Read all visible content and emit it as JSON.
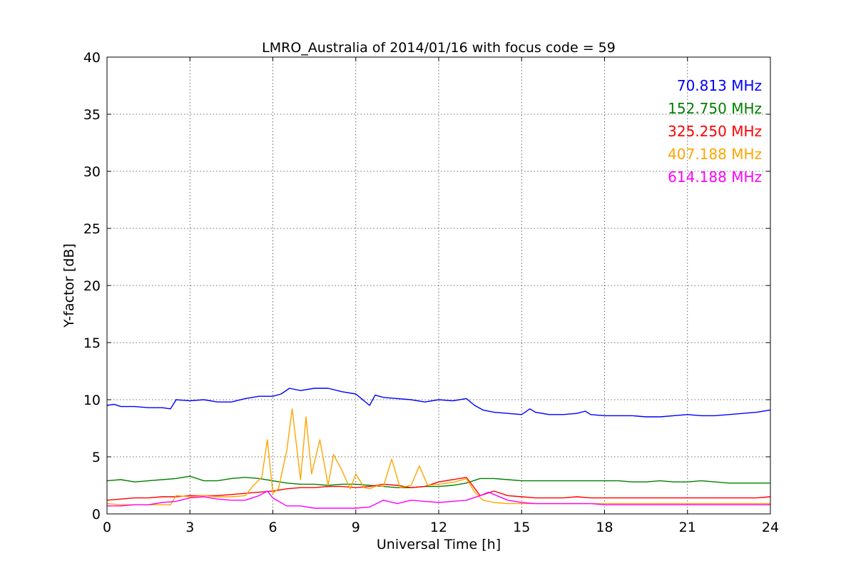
{
  "chart_data": {
    "type": "line",
    "title": "LMRO_Australia of 2014/01/16 with focus code = 59",
    "xlabel": "Universal Time [h]",
    "ylabel": "Y-factor [dB]",
    "xlim": [
      0,
      24
    ],
    "ylim": [
      0,
      40
    ],
    "xticks": [
      0,
      3,
      6,
      9,
      12,
      15,
      18,
      21,
      24
    ],
    "yticks": [
      0,
      5,
      10,
      15,
      20,
      25,
      30,
      35,
      40
    ],
    "xtick_labels": [
      "0",
      "3",
      "6",
      "9",
      "12",
      "15",
      "18",
      "21",
      "24"
    ],
    "ytick_labels": [
      "0",
      "5",
      "10",
      "15",
      "20",
      "25",
      "30",
      "35",
      "40"
    ],
    "grid": true,
    "legend_position": "top-right",
    "series": [
      {
        "name": "70.813 MHz",
        "color": "#0000ff",
        "x": [
          0,
          0.25,
          0.5,
          1,
          1.5,
          2,
          2.3,
          2.5,
          3,
          3.5,
          4,
          4.5,
          5,
          5.5,
          6,
          6.3,
          6.6,
          7,
          7.5,
          8,
          8.5,
          9,
          9.5,
          9.7,
          10,
          10.5,
          11,
          11.5,
          12,
          12.5,
          13,
          13.3,
          13.6,
          14,
          14.5,
          15,
          15.3,
          15.5,
          16,
          16.5,
          17,
          17.3,
          17.5,
          18,
          18.5,
          19,
          19.5,
          20,
          20.5,
          21,
          21.5,
          22,
          22.5,
          23,
          23.5,
          24
        ],
        "y": [
          9.5,
          9.6,
          9.4,
          9.4,
          9.3,
          9.3,
          9.2,
          10,
          9.9,
          10,
          9.8,
          9.8,
          10.1,
          10.3,
          10.3,
          10.5,
          11,
          10.8,
          11,
          11,
          10.7,
          10.5,
          9.5,
          10.4,
          10.2,
          10.1,
          10,
          9.8,
          10,
          9.9,
          10.1,
          9.5,
          9.1,
          8.9,
          8.8,
          8.7,
          9.2,
          8.9,
          8.7,
          8.7,
          8.8,
          9,
          8.7,
          8.6,
          8.6,
          8.6,
          8.5,
          8.5,
          8.6,
          8.7,
          8.6,
          8.6,
          8.7,
          8.8,
          8.9,
          9.1
        ]
      },
      {
        "name": "152.750 MHz",
        "color": "#008000",
        "x": [
          0,
          0.5,
          1,
          1.5,
          2,
          2.5,
          3,
          3.5,
          4,
          4.5,
          5,
          5.5,
          6,
          6.5,
          7,
          7.5,
          8,
          8.5,
          9,
          9.5,
          10,
          10.5,
          11,
          11.5,
          12,
          12.5,
          13,
          13.5,
          14,
          14.5,
          15,
          15.5,
          16,
          16.5,
          17,
          17.5,
          18,
          18.5,
          19,
          19.5,
          20,
          20.5,
          21,
          21.5,
          22,
          22.5,
          23,
          23.5,
          24
        ],
        "y": [
          2.9,
          3,
          2.8,
          2.9,
          3,
          3.1,
          3.3,
          2.9,
          2.9,
          3.1,
          3.2,
          3.1,
          2.9,
          2.7,
          2.6,
          2.6,
          2.5,
          2.6,
          2.6,
          2.5,
          2.4,
          2.3,
          2.3,
          2.4,
          2.4,
          2.5,
          2.7,
          3.1,
          3.1,
          3,
          2.9,
          2.9,
          2.9,
          2.9,
          2.9,
          2.9,
          2.9,
          2.9,
          2.8,
          2.8,
          2.9,
          2.8,
          2.8,
          2.9,
          2.8,
          2.7,
          2.7,
          2.7,
          2.7
        ]
      },
      {
        "name": "325.250 MHz",
        "color": "#ff0000",
        "x": [
          0,
          0.5,
          1,
          1.5,
          2,
          2.5,
          3,
          3.5,
          4,
          4.5,
          5,
          5.5,
          6,
          6.5,
          7,
          7.5,
          8,
          8.5,
          9,
          9.5,
          10,
          10.5,
          11,
          11.5,
          12,
          12.5,
          13,
          13.5,
          14,
          14.5,
          15,
          15.5,
          16,
          16.5,
          17,
          17.5,
          18,
          18.5,
          19,
          19.5,
          20,
          20.5,
          21,
          21.5,
          22,
          22.5,
          23,
          23.5,
          24
        ],
        "y": [
          1.2,
          1.3,
          1.4,
          1.4,
          1.5,
          1.5,
          1.6,
          1.6,
          1.6,
          1.7,
          1.8,
          1.9,
          2,
          2.2,
          2.3,
          2.3,
          2.4,
          2.4,
          2.3,
          2.4,
          2.6,
          2.5,
          2.3,
          2.4,
          2.8,
          3,
          3.2,
          1.6,
          2,
          1.6,
          1.5,
          1.4,
          1.4,
          1.4,
          1.5,
          1.4,
          1.4,
          1.4,
          1.4,
          1.4,
          1.4,
          1.4,
          1.4,
          1.4,
          1.4,
          1.4,
          1.4,
          1.4,
          1.5
        ]
      },
      {
        "name": "407.188 MHz",
        "color": "#ffa500",
        "x": [
          0,
          0.5,
          1,
          1.5,
          2,
          2.3,
          2.5,
          3,
          3.5,
          4,
          4.5,
          5,
          5.3,
          5.6,
          5.8,
          6,
          6.2,
          6.5,
          6.7,
          7,
          7.2,
          7.4,
          7.7,
          8,
          8.2,
          8.5,
          8.8,
          9,
          9.3,
          9.5,
          9.8,
          10,
          10.3,
          10.6,
          11,
          11.3,
          11.6,
          12,
          12.3,
          12.6,
          13,
          13.3,
          13.6,
          14,
          14.5,
          15,
          15.5,
          16,
          16.5,
          17,
          17.5,
          18,
          18.5,
          19,
          19.5,
          20,
          20.5,
          21,
          21.5,
          22,
          22.5,
          23,
          23.5,
          24
        ],
        "y": [
          0.9,
          0.8,
          0.8,
          0.8,
          0.8,
          0.8,
          1.6,
          1.5,
          1.6,
          1.5,
          1.5,
          1.6,
          2.5,
          3.2,
          6.5,
          1.8,
          2.2,
          5.5,
          9.2,
          3,
          8.5,
          3.5,
          6.5,
          2.5,
          5.2,
          3.8,
          2.2,
          3.5,
          2.3,
          2.2,
          2.5,
          2.4,
          4.8,
          2.3,
          2.5,
          4.2,
          2.5,
          2.6,
          2.7,
          2.8,
          3.1,
          1.9,
          1.2,
          1,
          0.9,
          0.9,
          0.9,
          0.9,
          0.9,
          0.9,
          0.9,
          0.9,
          0.9,
          0.9,
          0.9,
          0.9,
          0.9,
          0.9,
          0.9,
          0.9,
          0.9,
          0.9,
          0.9,
          0.9
        ]
      },
      {
        "name": "614.188 MHz",
        "color": "#ff00ff",
        "x": [
          0,
          0.5,
          1,
          1.5,
          2,
          2.5,
          3,
          3.5,
          4,
          4.5,
          5,
          5.5,
          5.8,
          6,
          6.5,
          7,
          7.5,
          8,
          8.5,
          9,
          9.5,
          10,
          10.5,
          11,
          11.5,
          12,
          12.5,
          13,
          13.5,
          13.8,
          14,
          14.5,
          15,
          15.5,
          16,
          16.5,
          17,
          17.5,
          18,
          18.5,
          19,
          19.5,
          20,
          20.5,
          21,
          21.5,
          22,
          22.5,
          23,
          23.5,
          24
        ],
        "y": [
          0.7,
          0.7,
          0.8,
          0.8,
          1,
          1.1,
          1.4,
          1.5,
          1.3,
          1.2,
          1.2,
          1.6,
          2,
          1.4,
          0.7,
          0.7,
          0.5,
          0.5,
          0.5,
          0.5,
          0.6,
          1.2,
          0.9,
          1.2,
          1.1,
          1,
          1.1,
          1.2,
          1.6,
          1.9,
          1.7,
          1.2,
          1,
          0.9,
          0.9,
          0.9,
          0.9,
          0.9,
          0.8,
          0.8,
          0.8,
          0.8,
          0.8,
          0.8,
          0.8,
          0.8,
          0.8,
          0.8,
          0.8,
          0.8,
          0.8
        ]
      }
    ]
  }
}
